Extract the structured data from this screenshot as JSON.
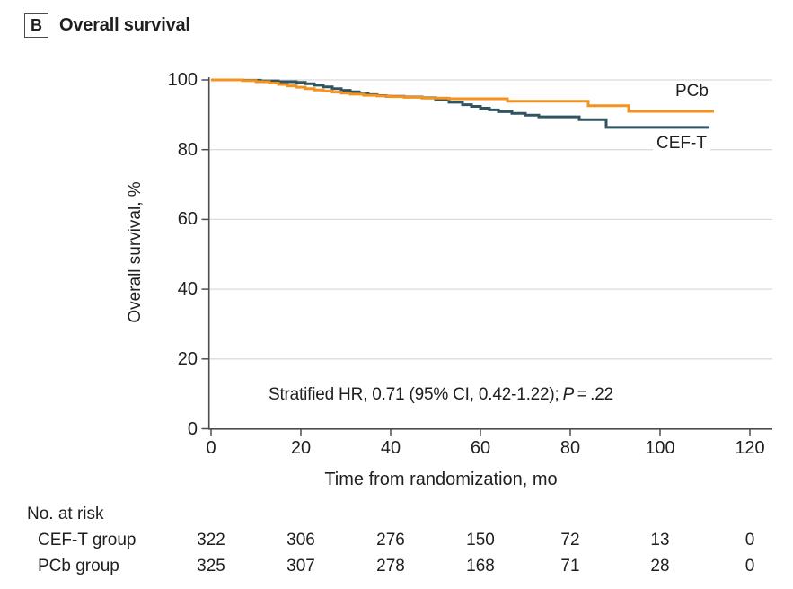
{
  "panel": {
    "letter": "B",
    "title": "Overall survival"
  },
  "colors": {
    "cef_t": "#315560",
    "pcb": "#F6921E",
    "grid": "#DBDBDB",
    "axis": "#4D4D4D",
    "text": "#1F1F1F"
  },
  "chart_data": {
    "type": "line",
    "subtype": "kaplan-meier-step",
    "title": "Overall survival",
    "xlabel": "Time from randomization, mo",
    "ylabel": "Overall survival, %",
    "xlim": [
      0,
      120
    ],
    "ylim": [
      0,
      100
    ],
    "x_ticks": [
      0,
      20,
      40,
      60,
      80,
      100,
      120
    ],
    "y_ticks": [
      0,
      20,
      40,
      60,
      80,
      100
    ],
    "grid": "horizontal",
    "legend_position": "end-of-curve",
    "annotation": {
      "prefix": "Stratified HR, 0.71 (95% CI, 0.42-1.22);",
      "p_italic": "P",
      "p_rest": " = .22"
    },
    "series": [
      {
        "name": "CEF-T",
        "color": "#315560",
        "points": [
          [
            0,
            100
          ],
          [
            7,
            99.9
          ],
          [
            11,
            99.7
          ],
          [
            15,
            99.5
          ],
          [
            19,
            99.3
          ],
          [
            21,
            98.9
          ],
          [
            23,
            98.5
          ],
          [
            25,
            98.0
          ],
          [
            27,
            97.5
          ],
          [
            29,
            97.0
          ],
          [
            31,
            96.6
          ],
          [
            33,
            96.2
          ],
          [
            35,
            95.8
          ],
          [
            37,
            95.5
          ],
          [
            39,
            95.3
          ],
          [
            43,
            95.1
          ],
          [
            47,
            94.9
          ],
          [
            50,
            94.3
          ],
          [
            53,
            93.6
          ],
          [
            56,
            92.9
          ],
          [
            58,
            92.4
          ],
          [
            60,
            91.9
          ],
          [
            62,
            91.4
          ],
          [
            64,
            90.9
          ],
          [
            67,
            90.4
          ],
          [
            70,
            89.9
          ],
          [
            73,
            89.4
          ],
          [
            82,
            88.6
          ],
          [
            88,
            86.4
          ],
          [
            111,
            86.4
          ]
        ]
      },
      {
        "name": "PCb",
        "color": "#F6921E",
        "points": [
          [
            0,
            100
          ],
          [
            7,
            99.8
          ],
          [
            10,
            99.5
          ],
          [
            13,
            99.1
          ],
          [
            15,
            98.7
          ],
          [
            17,
            98.3
          ],
          [
            19,
            97.9
          ],
          [
            21,
            97.5
          ],
          [
            23,
            97.1
          ],
          [
            25,
            96.8
          ],
          [
            27,
            96.5
          ],
          [
            29,
            96.2
          ],
          [
            31,
            95.9
          ],
          [
            34,
            95.6
          ],
          [
            37,
            95.4
          ],
          [
            40,
            95.2
          ],
          [
            43,
            95.0
          ],
          [
            47,
            94.8
          ],
          [
            53,
            94.6
          ],
          [
            66,
            93.9
          ],
          [
            84,
            92.6
          ],
          [
            93,
            91.0
          ],
          [
            112,
            91.0
          ]
        ]
      }
    ]
  },
  "risk_table": {
    "heading": "No. at risk",
    "time_points": [
      0,
      20,
      40,
      60,
      80,
      100,
      120
    ],
    "rows": [
      {
        "label": "CEF-T group",
        "counts": [
          322,
          306,
          276,
          150,
          72,
          13,
          0
        ]
      },
      {
        "label": "PCb group",
        "counts": [
          325,
          307,
          278,
          168,
          71,
          28,
          0
        ]
      }
    ]
  }
}
